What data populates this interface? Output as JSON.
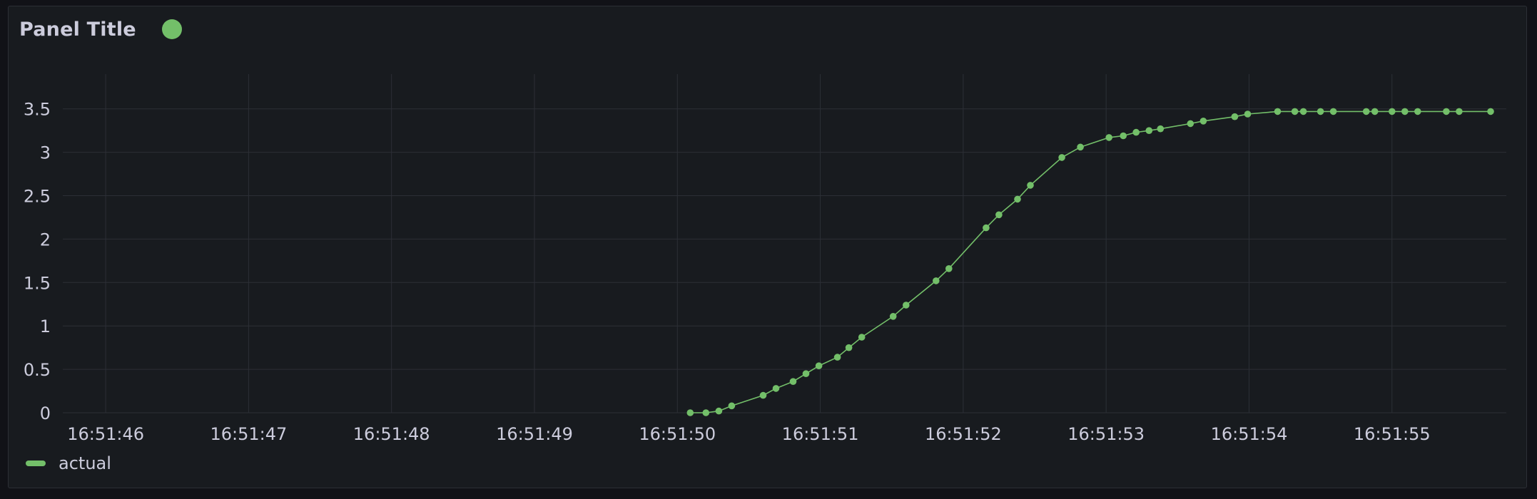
{
  "panel": {
    "title": "Panel Title",
    "status_color": "#73bf69"
  },
  "colors": {
    "background": "#181b1f",
    "grid": "#2c2f36",
    "text": "#ccccdc",
    "series": "#73bf69"
  },
  "chart_data": {
    "type": "line",
    "title": "Panel Title",
    "xlabel": "",
    "ylabel": "",
    "x_unit": "seconds after 16:51:46",
    "x_ticks": [
      "16:51:46",
      "16:51:47",
      "16:51:48",
      "16:51:49",
      "16:51:50",
      "16:51:51",
      "16:51:52",
      "16:51:53",
      "16:51:54",
      "16:51:55"
    ],
    "xlim": [
      "16:51:45.70",
      "16:51:55.80"
    ],
    "y_ticks": [
      "0",
      "0.5",
      "1",
      "1.5",
      "2",
      "2.5",
      "3",
      "3.5"
    ],
    "ylim": [
      0,
      3.9
    ],
    "grid": true,
    "legend": "bottom-left",
    "series": [
      {
        "name": "actual",
        "color": "#73bf69",
        "points_marked": true,
        "x": [
          "16:51:50.09",
          "16:51:50.20",
          "16:51:50.29",
          "16:51:50.38",
          "16:51:50.60",
          "16:51:50.69",
          "16:51:50.81",
          "16:51:50.90",
          "16:51:50.99",
          "16:51:51.12",
          "16:51:51.20",
          "16:51:51.29",
          "16:51:51.51",
          "16:51:51.60",
          "16:51:51.81",
          "16:51:51.90",
          "16:51:52.16",
          "16:51:52.25",
          "16:51:52.38",
          "16:51:52.47",
          "16:51:52.69",
          "16:51:52.82",
          "16:51:53.02",
          "16:51:53.12",
          "16:51:53.21",
          "16:51:53.30",
          "16:51:53.38",
          "16:51:53.59",
          "16:51:53.68",
          "16:51:53.90",
          "16:51:53.99",
          "16:51:54.20",
          "16:51:54.32",
          "16:51:54.38",
          "16:51:54.50",
          "16:51:54.59",
          "16:51:54.82",
          "16:51:54.88",
          "16:51:55.00",
          "16:51:55.09",
          "16:51:55.18",
          "16:51:55.38",
          "16:51:55.47",
          "16:51:55.69"
        ],
        "y": [
          0.0,
          0.0,
          0.02,
          0.08,
          0.2,
          0.28,
          0.36,
          0.45,
          0.54,
          0.64,
          0.75,
          0.87,
          1.11,
          1.24,
          1.52,
          1.66,
          2.13,
          2.28,
          2.46,
          2.62,
          2.94,
          3.06,
          3.17,
          3.19,
          3.23,
          3.25,
          3.27,
          3.33,
          3.36,
          3.41,
          3.44,
          3.47,
          3.47,
          3.47,
          3.47,
          3.47,
          3.47,
          3.47,
          3.47,
          3.47,
          3.47,
          3.47,
          3.47,
          3.47
        ]
      }
    ]
  }
}
